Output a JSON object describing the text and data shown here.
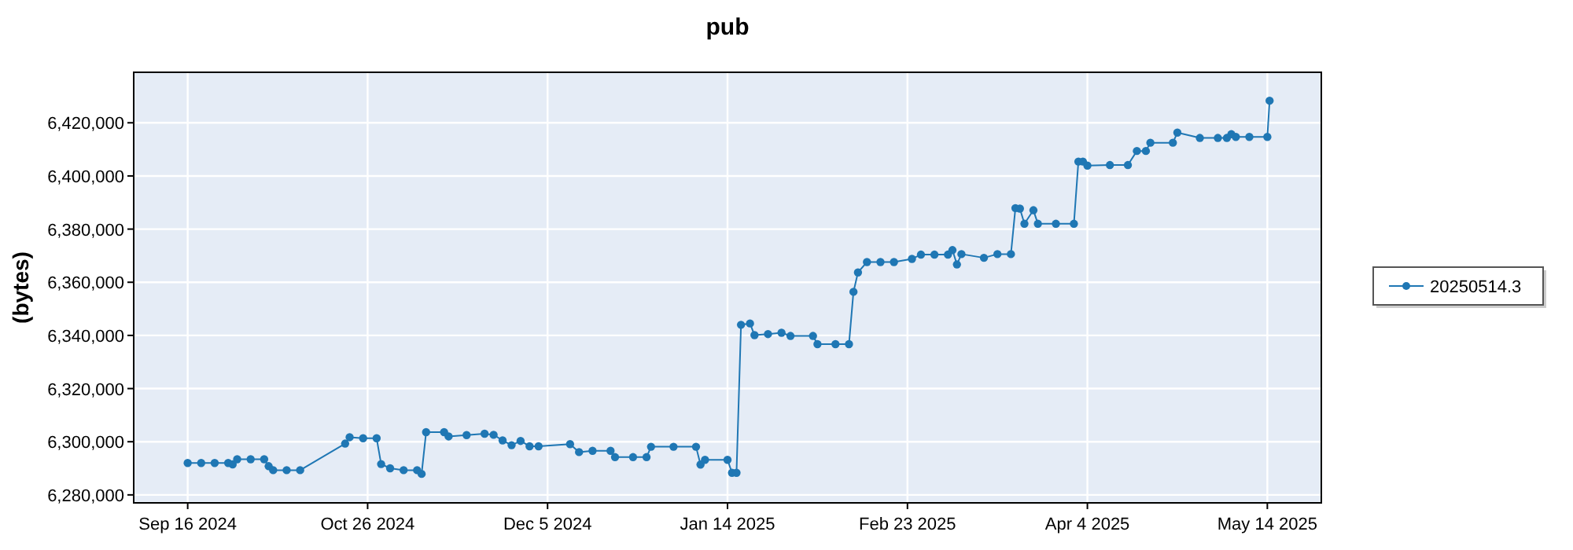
{
  "chart_data": {
    "type": "line",
    "title": "pub",
    "ylabel": "(bytes)",
    "xlim": [
      "2024-09-04",
      "2025-05-26"
    ],
    "xticks": [
      {
        "value": "2024-09-16",
        "label": "Sep 16 2024"
      },
      {
        "value": "2024-10-26",
        "label": "Oct 26 2024"
      },
      {
        "value": "2024-12-05",
        "label": "Dec 5 2024"
      },
      {
        "value": "2025-01-14",
        "label": "Jan 14 2025"
      },
      {
        "value": "2025-02-23",
        "label": "Feb 23 2025"
      },
      {
        "value": "2025-04-04",
        "label": "Apr 4 2025"
      },
      {
        "value": "2025-05-14",
        "label": "May 14 2025"
      }
    ],
    "ylim": [
      6277000,
      6439000
    ],
    "yticks": [
      {
        "value": 6280000,
        "label": "6,280,000"
      },
      {
        "value": 6300000,
        "label": "6,300,000"
      },
      {
        "value": 6320000,
        "label": "6,320,000"
      },
      {
        "value": 6340000,
        "label": "6,340,000"
      },
      {
        "value": 6360000,
        "label": "6,360,000"
      },
      {
        "value": 6380000,
        "label": "6,380,000"
      },
      {
        "value": 6400000,
        "label": "6,400,000"
      },
      {
        "value": 6420000,
        "label": "6,420,000"
      }
    ],
    "grid": true,
    "legend": "right",
    "marker": "circle",
    "line_style": "solid",
    "series": [
      {
        "name": "20250514.3",
        "color": "#1f77b4",
        "x": [
          "2024-09-16",
          "2024-09-19",
          "2024-09-22",
          "2024-09-25",
          "2024-09-26",
          "2024-09-27",
          "2024-09-30",
          "2024-10-03",
          "2024-10-04",
          "2024-10-05",
          "2024-10-08",
          "2024-10-11",
          "2024-10-21",
          "2024-10-22",
          "2024-10-25",
          "2024-10-28",
          "2024-10-29",
          "2024-10-31",
          "2024-11-03",
          "2024-11-06",
          "2024-11-07",
          "2024-11-08",
          "2024-11-12",
          "2024-11-13",
          "2024-11-17",
          "2024-11-21",
          "2024-11-23",
          "2024-11-25",
          "2024-11-27",
          "2024-11-29",
          "2024-12-01",
          "2024-12-03",
          "2024-12-10",
          "2024-12-12",
          "2024-12-15",
          "2024-12-19",
          "2024-12-20",
          "2024-12-24",
          "2024-12-27",
          "2024-12-28",
          "2025-01-02",
          "2025-01-07",
          "2025-01-08",
          "2025-01-09",
          "2025-01-14",
          "2025-01-15",
          "2025-01-16",
          "2025-01-17",
          "2025-01-19",
          "2025-01-20",
          "2025-01-23",
          "2025-01-26",
          "2025-01-28",
          "2025-02-02",
          "2025-02-03",
          "2025-02-07",
          "2025-02-10",
          "2025-02-11",
          "2025-02-12",
          "2025-02-14",
          "2025-02-17",
          "2025-02-20",
          "2025-02-24",
          "2025-02-26",
          "2025-03-01",
          "2025-03-04",
          "2025-03-05",
          "2025-03-06",
          "2025-03-07",
          "2025-03-12",
          "2025-03-15",
          "2025-03-18",
          "2025-03-19",
          "2025-03-20",
          "2025-03-21",
          "2025-03-23",
          "2025-03-24",
          "2025-03-28",
          "2025-04-01",
          "2025-04-02",
          "2025-04-03",
          "2025-04-04",
          "2025-04-09",
          "2025-04-13",
          "2025-04-15",
          "2025-04-17",
          "2025-04-18",
          "2025-04-23",
          "2025-04-24",
          "2025-04-29",
          "2025-05-03",
          "2025-05-05",
          "2025-05-06",
          "2025-05-07",
          "2025-05-10",
          "2025-05-14",
          "2025-05-14T12:00"
        ],
        "values": [
          6292000,
          6292000,
          6292000,
          6292000,
          6291500,
          6293400,
          6293400,
          6293400,
          6290800,
          6289300,
          6289300,
          6289300,
          6299300,
          6301700,
          6301300,
          6301300,
          6291600,
          6290000,
          6289300,
          6289300,
          6287900,
          6303600,
          6303600,
          6302000,
          6302500,
          6303000,
          6302600,
          6300500,
          6298700,
          6300300,
          6298300,
          6298300,
          6299100,
          6296100,
          6296600,
          6296600,
          6294200,
          6294200,
          6294200,
          6298100,
          6298100,
          6298100,
          6291400,
          6293200,
          6293200,
          6288300,
          6288300,
          6344000,
          6344500,
          6340100,
          6340500,
          6341000,
          6339800,
          6339800,
          6336700,
          6336700,
          6336700,
          6356400,
          6363700,
          6367600,
          6367600,
          6367600,
          6368800,
          6370400,
          6370400,
          6370400,
          6372100,
          6366700,
          6370600,
          6369200,
          6370600,
          6370600,
          6387900,
          6387700,
          6382000,
          6387100,
          6382000,
          6382000,
          6382000,
          6405400,
          6405400,
          6403900,
          6404100,
          6404100,
          6409400,
          6409400,
          6412500,
          6412500,
          6416300,
          6414300,
          6414300,
          6414300,
          6415700,
          6414700,
          6414700,
          6414700,
          6428300
        ]
      }
    ]
  }
}
